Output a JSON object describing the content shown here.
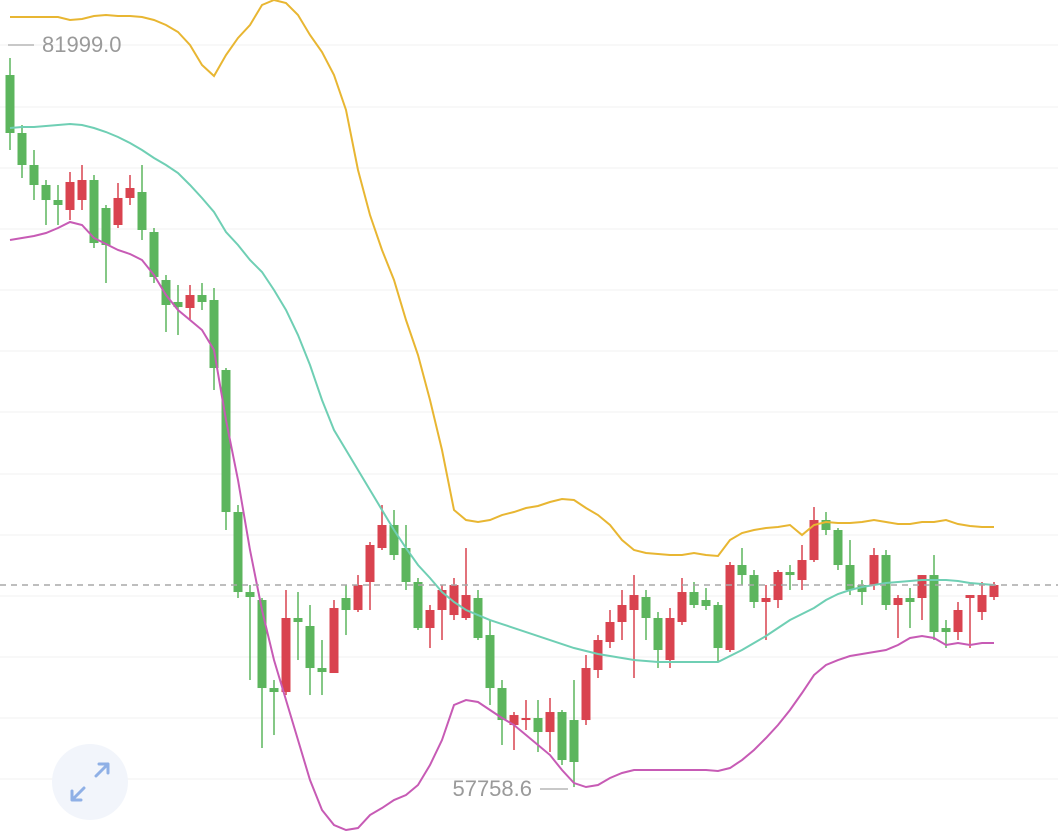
{
  "chart_data": {
    "type": "candlestick",
    "ylim": [
      56297,
      83927
    ],
    "up_color": "#d9434f",
    "down_color": "#5cb55d",
    "annotations": [
      "81999.0",
      "57758.6"
    ],
    "open": [
      81433,
      79505,
      78441,
      77776,
      77277,
      76945,
      77277,
      77942,
      77011,
      76446,
      77344,
      77543,
      76213,
      74617,
      73886,
      73686,
      74118,
      73952,
      71625,
      66903,
      64243,
      63977,
      61051,
      60918,
      63379,
      63113,
      61716,
      61550,
      64044,
      63645,
      64576,
      65706,
      66471,
      65706,
      64576,
      63046,
      63645,
      63478,
      63379,
      64044,
      62813,
      61051,
      59821,
      59987,
      60054,
      59588,
      60253,
      59987,
      59987,
      61650,
      62581,
      63246,
      63645,
      64077,
      63379,
      61982,
      63246,
      64243,
      63977,
      63811,
      62315,
      65141,
      64808,
      63911,
      63977,
      64908,
      64642,
      65307,
      66637,
      66305,
      65141,
      64476,
      64476,
      65473,
      63811,
      64044,
      64044,
      64808,
      63046,
      62913,
      64044,
      63578,
      64077
    ],
    "high": [
      81999,
      79771,
      78940,
      77942,
      77776,
      78208,
      78441,
      78108,
      77111,
      77842,
      78108,
      78441,
      76346,
      74783,
      74451,
      74451,
      74517,
      74351,
      71691,
      67136,
      64476,
      64044,
      61317,
      64310,
      64243,
      63811,
      62647,
      63977,
      64476,
      64808,
      65906,
      67136,
      66970,
      66471,
      64709,
      63811,
      64476,
      64709,
      65706,
      64310,
      63312,
      61317,
      60253,
      60652,
      60652,
      60719,
      60320,
      61317,
      62148,
      62813,
      63645,
      64310,
      64808,
      64310,
      63578,
      63711,
      64709,
      64576,
      64376,
      63911,
      65241,
      65706,
      64975,
      64476,
      64975,
      65141,
      65806,
      67069,
      66903,
      66371,
      65972,
      64642,
      65706,
      65640,
      64143,
      64376,
      64808,
      65473,
      63312,
      63911,
      64143,
      64576,
      64576
    ],
    "low": [
      78940,
      78009,
      77277,
      76446,
      76446,
      76612,
      76945,
      75681,
      74517,
      76346,
      77111,
      75947,
      74517,
      72888,
      72788,
      73287,
      73620,
      70960,
      66305,
      64044,
      61317,
      59056,
      59488,
      60818,
      61982,
      60818,
      60818,
      61550,
      62813,
      63578,
      63645,
      65640,
      65307,
      64310,
      62980,
      62381,
      62647,
      63312,
      63312,
      62647,
      60486,
      59156,
      58990,
      59655,
      58923,
      58923,
      58491,
      57758.6,
      59821,
      61384,
      62381,
      62647,
      61384,
      62647,
      61716,
      61716,
      63146,
      63711,
      63645,
      61916,
      62248,
      64476,
      63711,
      62647,
      63711,
      64310,
      64310,
      65241,
      66138,
      64975,
      64143,
      63811,
      64310,
      63645,
      62714,
      63046,
      63312,
      62647,
      62381,
      62647,
      62381,
      63312,
      63977
    ],
    "close": [
      79505,
      78441,
      77776,
      77277,
      77111,
      77876,
      77942,
      75847,
      75781,
      77344,
      77676,
      76280,
      74717,
      73786,
      73719,
      74118,
      73886,
      71691,
      66903,
      64243,
      64077,
      61051,
      60918,
      63379,
      63246,
      61716,
      61583,
      63711,
      63645,
      64476,
      65806,
      66471,
      65473,
      64576,
      63046,
      63645,
      64310,
      64476,
      64143,
      62714,
      61051,
      59987,
      60153,
      60054,
      59588,
      60253,
      58657,
      58591,
      61716,
      62647,
      63246,
      63811,
      64143,
      63379,
      62315,
      63379,
      64243,
      63811,
      63778,
      62381,
      65141,
      64808,
      63911,
      64044,
      64908,
      64808,
      65307,
      66637,
      66305,
      65141,
      64310,
      64243,
      65473,
      63811,
      64044,
      63911,
      64808,
      62913,
      62913,
      63645,
      64143,
      64143,
      64476
    ],
    "bands": [
      {
        "color": "#e8b632",
        "values": [
          83362,
          83362,
          83362,
          83362,
          83362,
          83262,
          83295,
          83395,
          83428,
          83395,
          83395,
          83362,
          83262,
          83096,
          82863,
          82431,
          81766,
          81400,
          82098,
          82664,
          83096,
          83761,
          83927,
          83827,
          83428,
          82763,
          82198,
          81433,
          80270,
          78275,
          76778,
          75615,
          74617,
          73287,
          72123,
          70627,
          68965,
          66970,
          66637,
          66570,
          66637,
          66803,
          66903,
          67036,
          67103,
          67236,
          67335,
          67302,
          67036,
          66803,
          66471,
          65972,
          65640,
          65540,
          65507,
          65473,
          65473,
          65540,
          65473,
          65440,
          65972,
          66205,
          66305,
          66371,
          66404,
          66471,
          66138,
          66471,
          66570,
          66537,
          66537,
          66570,
          66637,
          66570,
          66504,
          66504,
          66570,
          66570,
          66637,
          66504,
          66438,
          66404,
          66404
        ]
      },
      {
        "color": "#6fcfb4",
        "values": [
          79671,
          79704,
          79704,
          79738,
          79771,
          79804,
          79771,
          79671,
          79538,
          79372,
          79172,
          78940,
          78674,
          78441,
          78175,
          77776,
          77344,
          76878,
          76213,
          75781,
          75282,
          74883,
          74285,
          73620,
          72788,
          71791,
          70627,
          69630,
          68965,
          68300,
          67635,
          66970,
          66305,
          65706,
          65141,
          64709,
          64243,
          63911,
          63645,
          63478,
          63312,
          63179,
          63046,
          62913,
          62780,
          62647,
          62514,
          62381,
          62281,
          62182,
          62115,
          62049,
          61982,
          61949,
          61916,
          61916,
          61916,
          61916,
          61916,
          61916,
          62115,
          62315,
          62547,
          62780,
          63046,
          63312,
          63512,
          63711,
          63977,
          64177,
          64310,
          64409,
          64476,
          64542,
          64576,
          64609,
          64642,
          64642,
          64642,
          64609,
          64542,
          64509,
          64476
        ]
      },
      {
        "color": "#c75bb5",
        "values": [
          75947,
          76014,
          76080,
          76180,
          76346,
          76546,
          76446,
          76014,
          75814,
          75615,
          75482,
          75282,
          74783,
          74118,
          73620,
          73287,
          72955,
          72290,
          69962,
          67967,
          65640,
          63645,
          61982,
          60652,
          59322,
          57992,
          56995,
          56496,
          56330,
          56396,
          56828,
          57061,
          57327,
          57493,
          57826,
          58491,
          59322,
          60486,
          60652,
          60586,
          60320,
          60054,
          59821,
          59488,
          59156,
          58823,
          58325,
          57892,
          57759,
          57826,
          58059,
          58225,
          58325,
          58325,
          58325,
          58325,
          58325,
          58325,
          58325,
          58291,
          58391,
          58657,
          58990,
          59389,
          59821,
          60320,
          60885,
          61483,
          61816,
          61982,
          62115,
          62182,
          62248,
          62315,
          62481,
          62714,
          62780,
          62714,
          62481,
          62547,
          62481,
          62547,
          62547
        ]
      }
    ]
  }
}
